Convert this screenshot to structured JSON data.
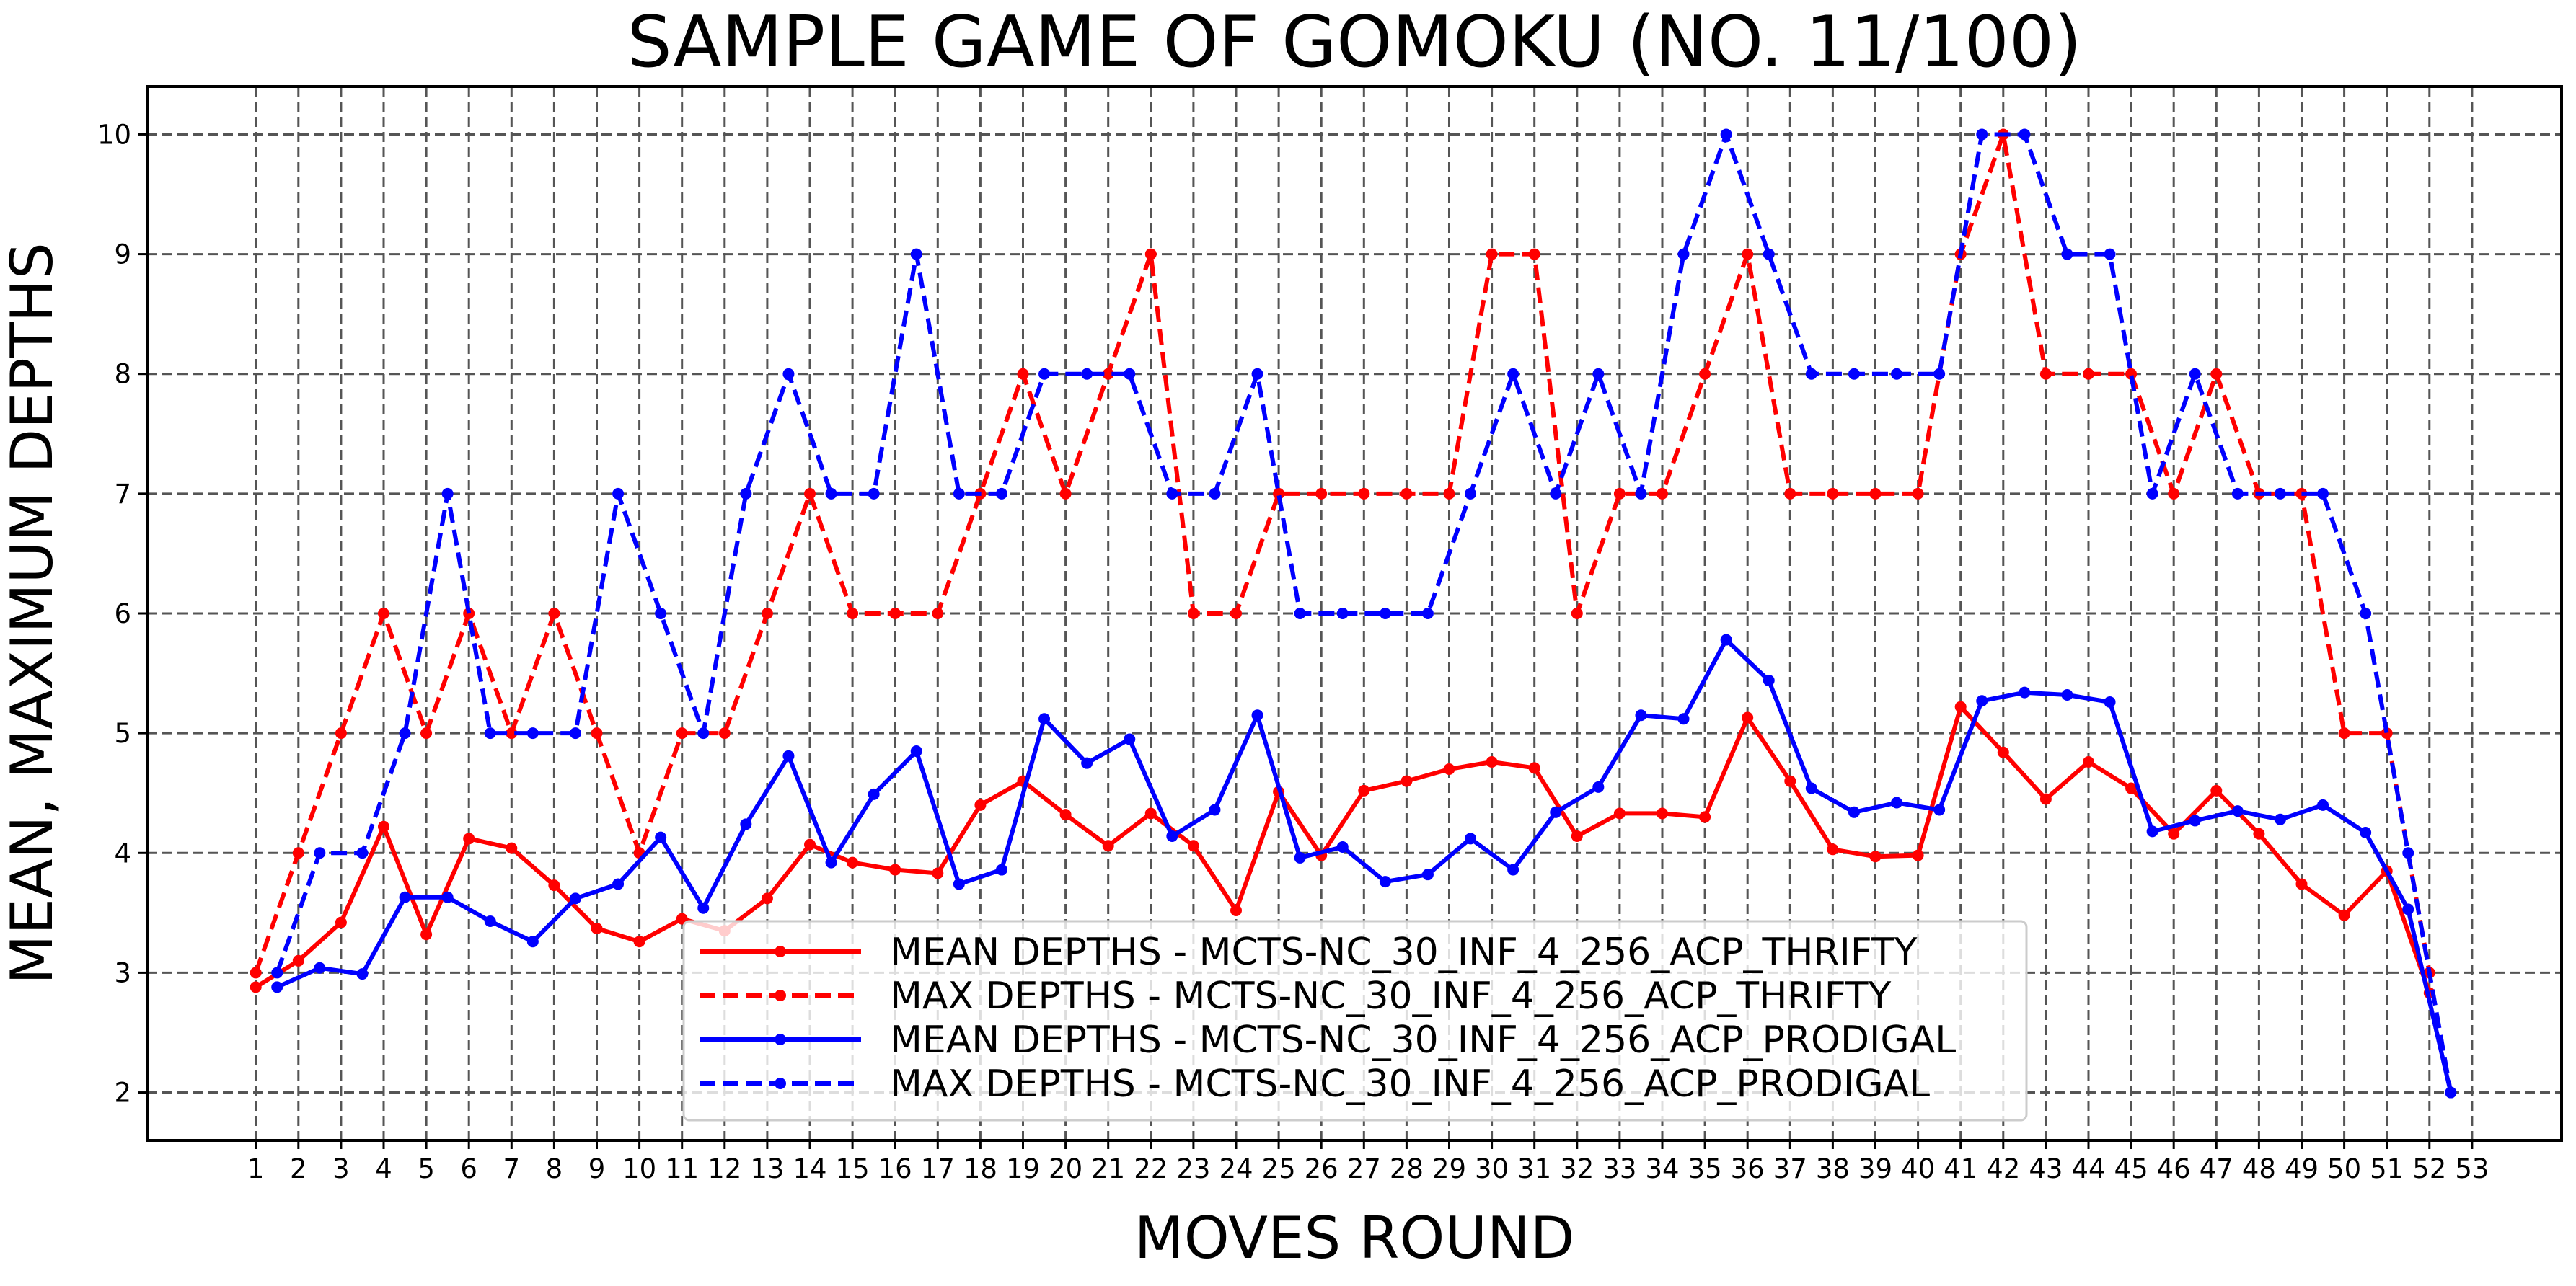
{
  "chart_data": {
    "type": "line",
    "title": "SAMPLE GAME OF GOMOKU (NO. 11/100)",
    "xlabel": "MOVES ROUND",
    "ylabel": "MEAN, MAXIMUM DEPTHS",
    "xlim": [
      -1.55,
      55.1
    ],
    "ylim": [
      1.6,
      10.4
    ],
    "xticks": [
      1,
      2,
      3,
      4,
      5,
      6,
      7,
      8,
      9,
      10,
      11,
      12,
      13,
      14,
      15,
      16,
      17,
      18,
      19,
      20,
      21,
      22,
      23,
      24,
      25,
      26,
      27,
      28,
      29,
      30,
      31,
      32,
      33,
      34,
      35,
      36,
      37,
      38,
      39,
      40,
      41,
      42,
      43,
      44,
      45,
      46,
      47,
      48,
      49,
      50,
      51,
      52,
      53
    ],
    "yticks": [
      2,
      3,
      4,
      5,
      6,
      7,
      8,
      9,
      10
    ],
    "grid": true,
    "legend_position": "lower-center",
    "series": [
      {
        "name": "MEAN DEPTHS - MCTS-NC_30_INF_4_256_ACP_THRIFTY",
        "color": "#ff0000",
        "linestyle": "solid",
        "x": [
          1,
          2,
          3,
          4,
          5,
          6,
          7,
          8,
          9,
          10,
          11,
          12,
          13,
          14,
          15,
          16,
          17,
          18,
          19,
          20,
          21,
          22,
          23,
          24,
          25,
          26,
          27,
          28,
          29,
          30,
          31,
          32,
          33,
          34,
          35,
          36,
          37,
          38,
          39,
          40,
          41,
          42,
          43,
          44,
          45,
          46,
          47,
          48,
          49,
          50,
          51,
          52
        ],
        "y": [
          2.88,
          3.1,
          3.42,
          4.22,
          3.32,
          4.12,
          4.04,
          3.73,
          3.37,
          3.26,
          3.45,
          3.35,
          3.62,
          4.07,
          3.92,
          3.86,
          3.83,
          4.4,
          4.6,
          4.32,
          4.06,
          4.33,
          4.06,
          3.52,
          4.51,
          3.98,
          4.52,
          4.6,
          4.7,
          4.76,
          4.71,
          4.14,
          4.33,
          4.33,
          4.3,
          5.13,
          4.6,
          4.03,
          3.97,
          3.98,
          5.22,
          4.84,
          4.45,
          4.76,
          4.54,
          4.16,
          4.52,
          4.16,
          3.74,
          3.48,
          3.85,
          2.83
        ]
      },
      {
        "name": "MAX DEPTHS - MCTS-NC_30_INF_4_256_ACP_THRIFTY",
        "color": "#ff0000",
        "linestyle": "dashed",
        "x": [
          1,
          2,
          3,
          4,
          5,
          6,
          7,
          8,
          9,
          10,
          11,
          12,
          13,
          14,
          15,
          16,
          17,
          18,
          19,
          20,
          21,
          22,
          23,
          24,
          25,
          26,
          27,
          28,
          29,
          30,
          31,
          32,
          33,
          34,
          35,
          36,
          37,
          38,
          39,
          40,
          41,
          42,
          43,
          44,
          45,
          46,
          47,
          48,
          49,
          50,
          51,
          52
        ],
        "y": [
          3,
          4,
          5,
          6,
          5,
          6,
          5,
          6,
          5,
          4,
          5,
          5,
          6,
          7,
          6,
          6,
          6,
          7,
          8,
          7,
          8,
          9,
          6,
          6,
          7,
          7,
          7,
          7,
          7,
          9,
          9,
          6,
          7,
          7,
          8,
          9,
          7,
          7,
          7,
          7,
          9,
          10,
          8,
          8,
          8,
          7,
          8,
          7,
          7,
          5,
          5,
          3
        ]
      },
      {
        "name": "MEAN DEPTHS - MCTS-NC_30_INF_4_256_ACP_PRODIGAL",
        "color": "#0000ff",
        "linestyle": "solid",
        "x": [
          1.5,
          2.5,
          3.5,
          4.5,
          5.5,
          6.5,
          7.5,
          8.5,
          9.5,
          10.5,
          11.5,
          12.5,
          13.5,
          14.5,
          15.5,
          16.5,
          17.5,
          18.5,
          19.5,
          20.5,
          21.5,
          22.5,
          23.5,
          24.5,
          25.5,
          26.5,
          27.5,
          28.5,
          29.5,
          30.5,
          31.5,
          32.5,
          33.5,
          34.5,
          35.5,
          36.5,
          37.5,
          38.5,
          39.5,
          40.5,
          41.5,
          42.5,
          43.5,
          44.5,
          45.5,
          46.5,
          47.5,
          48.5,
          49.5,
          50.5,
          51.5,
          52.5
        ],
        "y": [
          2.88,
          3.04,
          2.99,
          3.63,
          3.63,
          3.43,
          3.26,
          3.62,
          3.74,
          4.13,
          3.54,
          4.24,
          4.81,
          3.92,
          4.49,
          4.85,
          3.74,
          3.86,
          5.12,
          4.75,
          4.95,
          4.14,
          4.36,
          5.15,
          3.96,
          4.05,
          3.76,
          3.82,
          4.12,
          3.86,
          4.34,
          4.55,
          5.15,
          5.12,
          5.78,
          5.44,
          4.54,
          4.34,
          4.42,
          4.36,
          5.27,
          5.34,
          5.32,
          5.26,
          4.18,
          4.27,
          4.35,
          4.28,
          4.4,
          4.17,
          3.53,
          2.0
        ]
      },
      {
        "name": "MAX DEPTHS - MCTS-NC_30_INF_4_256_ACP_PRODIGAL",
        "color": "#0000ff",
        "linestyle": "dashed",
        "x": [
          1.5,
          2.5,
          3.5,
          4.5,
          5.5,
          6.5,
          7.5,
          8.5,
          9.5,
          10.5,
          11.5,
          12.5,
          13.5,
          14.5,
          15.5,
          16.5,
          17.5,
          18.5,
          19.5,
          20.5,
          21.5,
          22.5,
          23.5,
          24.5,
          25.5,
          26.5,
          27.5,
          28.5,
          29.5,
          30.5,
          31.5,
          32.5,
          33.5,
          34.5,
          35.5,
          36.5,
          37.5,
          38.5,
          39.5,
          40.5,
          41.5,
          42.5,
          43.5,
          44.5,
          45.5,
          46.5,
          47.5,
          48.5,
          49.5,
          50.5,
          51.5,
          52.5
        ],
        "y": [
          3,
          4,
          4,
          5,
          7,
          5,
          5,
          5,
          7,
          6,
          5,
          7,
          8,
          7,
          7,
          9,
          7,
          7,
          8,
          8,
          8,
          7,
          7,
          8,
          6,
          6,
          6,
          6,
          7,
          8,
          7,
          8,
          7,
          9,
          10,
          9,
          8,
          8,
          8,
          8,
          10,
          10,
          9,
          9,
          7,
          8,
          7,
          7,
          7,
          6,
          4,
          2
        ]
      }
    ]
  }
}
